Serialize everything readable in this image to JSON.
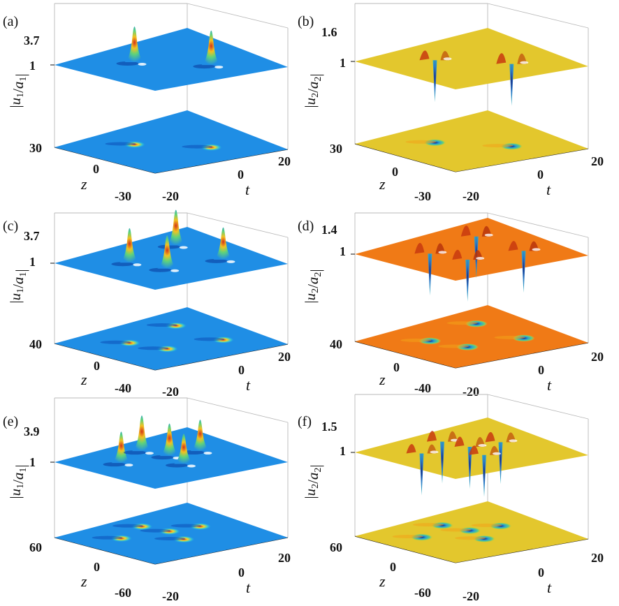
{
  "chart_data": [
    {
      "panel_label": "(a)",
      "type": "surface",
      "zlabel": "|u_1/a_1|",
      "ztick_top": "3.7",
      "ztick_level": "1",
      "z_max": 3.7,
      "background": 1,
      "colormap": "blue",
      "xlabel": "t",
      "ylabel": "z",
      "xticks": [
        "-20",
        "0",
        "20"
      ],
      "yticks": [
        "30",
        "0",
        "-30"
      ],
      "peaks": [
        {
          "t": -6,
          "z": 10,
          "height": 3.7,
          "kind": "peak"
        },
        {
          "t": 6,
          "z": -12,
          "height": 3.6,
          "kind": "peak"
        }
      ]
    },
    {
      "panel_label": "(b)",
      "type": "surface",
      "zlabel": "|u_2/a_2|",
      "ztick_top": "1.6",
      "ztick_level": "1",
      "z_max": 1.6,
      "background": 1,
      "colormap": "yellow",
      "xlabel": "t",
      "ylabel": "z",
      "xticks": [
        "-20",
        "0",
        "20"
      ],
      "yticks": [
        "30",
        "0",
        "-30"
      ],
      "peaks": [
        {
          "t": -6,
          "z": 10,
          "height": 1.5,
          "kind": "dip"
        },
        {
          "t": 6,
          "z": -12,
          "height": 1.6,
          "kind": "dip"
        }
      ]
    },
    {
      "panel_label": "(c)",
      "type": "surface",
      "zlabel": "|u_1/a_1|",
      "ztick_top": "3.7",
      "ztick_level": "1",
      "z_max": 3.7,
      "background": 1,
      "colormap": "blue",
      "xlabel": "t",
      "ylabel": "z",
      "xticks": [
        "-20",
        "0",
        "20"
      ],
      "yticks": [
        "40",
        "0",
        "-40"
      ],
      "peaks": [
        {
          "t": -8,
          "z": 12,
          "height": 3.6,
          "kind": "peak"
        },
        {
          "t": 9,
          "z": 20,
          "height": 3.7,
          "kind": "peak"
        },
        {
          "t": -5,
          "z": -10,
          "height": 3.5,
          "kind": "peak"
        },
        {
          "t": 10,
          "z": -15,
          "height": 3.4,
          "kind": "peak"
        }
      ]
    },
    {
      "panel_label": "(d)",
      "type": "surface",
      "zlabel": "|u_2/a_2|",
      "ztick_top": "1.4",
      "ztick_level": "1",
      "z_max": 1.4,
      "background": 1,
      "colormap": "orange",
      "xlabel": "t",
      "ylabel": "z",
      "xticks": [
        "-20",
        "0",
        "20"
      ],
      "yticks": [
        "40",
        "0",
        "-40"
      ],
      "peaks": [
        {
          "t": -8,
          "z": 12,
          "height": 1.4,
          "kind": "dip"
        },
        {
          "t": 9,
          "z": 20,
          "height": 1.4,
          "kind": "dip"
        },
        {
          "t": -5,
          "z": -10,
          "height": 1.35,
          "kind": "dip"
        },
        {
          "t": 10,
          "z": -15,
          "height": 1.35,
          "kind": "dip"
        }
      ]
    },
    {
      "panel_label": "(e)",
      "type": "surface",
      "zlabel": "|u_1/a_1|",
      "ztick_top": "3.9",
      "ztick_level": "1",
      "z_max": 3.9,
      "background": 1,
      "colormap": "blue",
      "xlabel": "t",
      "ylabel": "z",
      "xticks": [
        "-20",
        "0",
        "20"
      ],
      "yticks": [
        "60",
        "0",
        "-60"
      ],
      "peaks": [
        {
          "t": -10,
          "z": 20,
          "height": 3.5,
          "kind": "peak"
        },
        {
          "t": 0,
          "z": 35,
          "height": 3.9,
          "kind": "peak"
        },
        {
          "t": 2,
          "z": 10,
          "height": 3.6,
          "kind": "peak"
        },
        {
          "t": 10,
          "z": 5,
          "height": 3.5,
          "kind": "peak"
        },
        {
          "t": 0,
          "z": -15,
          "height": 3.4,
          "kind": "peak"
        }
      ]
    },
    {
      "panel_label": "(f)",
      "type": "surface",
      "zlabel": "|u_2/a_2|",
      "ztick_top": "1.5",
      "ztick_level": "1",
      "z_max": 1.5,
      "background": 1,
      "colormap": "yellow",
      "xlabel": "t",
      "ylabel": "z",
      "xticks": [
        "-20",
        "0",
        "20"
      ],
      "yticks": [
        "60",
        "0",
        "-60"
      ],
      "peaks": [
        {
          "t": -10,
          "z": 20,
          "height": 1.4,
          "kind": "dip"
        },
        {
          "t": 0,
          "z": 35,
          "height": 1.5,
          "kind": "dip"
        },
        {
          "t": 2,
          "z": 10,
          "height": 1.45,
          "kind": "dip"
        },
        {
          "t": 10,
          "z": 5,
          "height": 1.45,
          "kind": "dip"
        },
        {
          "t": 0,
          "z": -15,
          "height": 1.4,
          "kind": "dip"
        }
      ]
    }
  ],
  "colors": {
    "blue": "#1f8ee5",
    "blue_dark": "#0b58c9",
    "yellow": "#e3c72d",
    "orange": "#f07a16",
    "peak_red": "#c42a14",
    "dip_navy": "#1a2a86",
    "axis": "#222222"
  }
}
